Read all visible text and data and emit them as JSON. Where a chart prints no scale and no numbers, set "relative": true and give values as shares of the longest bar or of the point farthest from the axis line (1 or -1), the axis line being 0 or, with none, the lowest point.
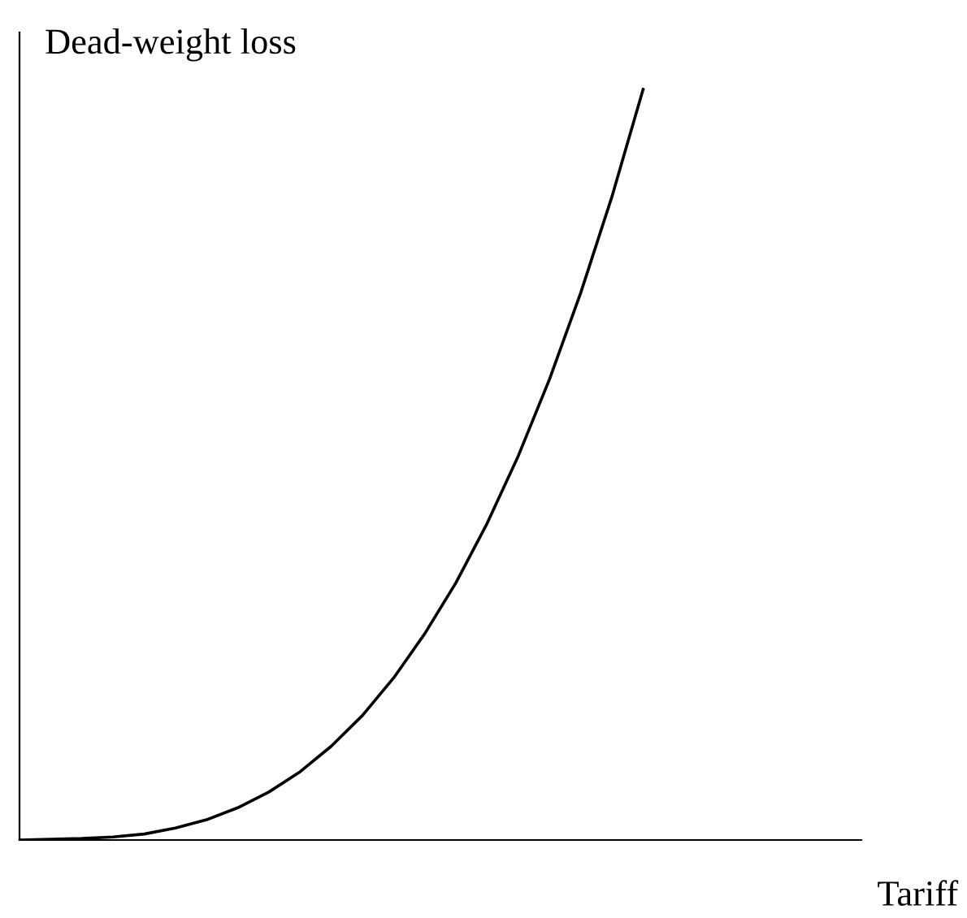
{
  "chart_data": {
    "type": "line",
    "relative": true,
    "xlabel": "Tariff",
    "ylabel": "Dead-weight loss",
    "categories": [
      null,
      null,
      null,
      null,
      null,
      null,
      null,
      null,
      null,
      null,
      null,
      null,
      null,
      null,
      null,
      null,
      null,
      null,
      null,
      null,
      null,
      null,
      null,
      null,
      null,
      null,
      null,
      null
    ],
    "series": [
      {
        "color": "#000000",
        "values": [
          0,
          0.001,
          0.002,
          0.004,
          0.008,
          0.016,
          0.027,
          0.043,
          0.064,
          0.091,
          0.125,
          0.166,
          0.216,
          0.275,
          0.343,
          0.422,
          0.512,
          0.614,
          0.729,
          0.857,
          1,
          null,
          null,
          null,
          null,
          null,
          null,
          null
        ]
      }
    ],
    "grid": false,
    "legend": false,
    "marker": "none",
    "line_style": "solid"
  }
}
